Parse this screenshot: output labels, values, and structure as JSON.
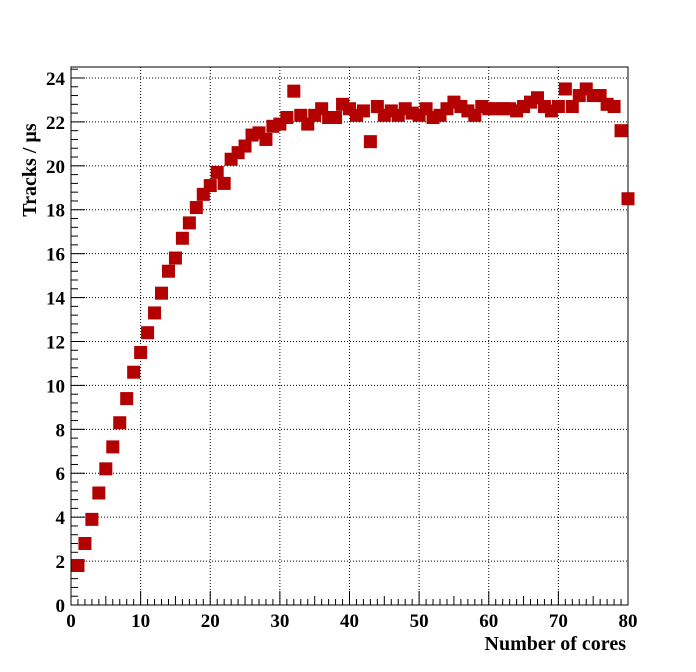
{
  "chart_data": {
    "type": "scatter",
    "title": "",
    "xlabel": "Number of cores",
    "ylabel": "Tracks / µs",
    "xlim": [
      0,
      80
    ],
    "ylim": [
      0,
      24.5
    ],
    "xticks": [
      0,
      10,
      20,
      30,
      40,
      50,
      60,
      70,
      80
    ],
    "yticks": [
      0,
      2,
      4,
      6,
      8,
      10,
      12,
      14,
      16,
      18,
      20,
      22,
      24
    ],
    "grid": true,
    "marker": "square",
    "color": "#b30000",
    "series": [
      {
        "x": [
          1,
          2,
          3,
          4,
          5,
          6,
          7,
          8,
          9,
          10,
          11,
          12,
          13,
          14,
          15,
          16,
          17,
          18,
          19,
          20,
          21,
          22,
          23,
          24,
          25,
          26,
          27,
          28,
          29,
          30,
          31,
          32,
          33,
          34,
          35,
          36,
          37,
          38,
          39,
          40,
          41,
          42,
          43,
          44,
          45,
          46,
          47,
          48,
          49,
          50,
          51,
          52,
          53,
          54,
          55,
          56,
          57,
          58,
          59,
          60,
          61,
          62,
          63,
          64,
          65,
          66,
          67,
          68,
          69,
          70,
          71,
          72,
          73,
          74,
          75,
          76,
          77,
          78,
          79,
          80
        ],
        "y": [
          1.8,
          2.8,
          3.9,
          5.1,
          6.2,
          7.2,
          8.3,
          9.4,
          10.6,
          11.5,
          12.4,
          13.3,
          14.2,
          15.2,
          15.8,
          16.7,
          17.4,
          18.1,
          18.7,
          19.1,
          19.7,
          19.2,
          20.3,
          20.6,
          20.9,
          21.4,
          21.5,
          21.2,
          21.8,
          21.9,
          22.2,
          23.4,
          22.3,
          21.9,
          22.3,
          22.6,
          22.2,
          22.2,
          22.8,
          22.6,
          22.3,
          22.5,
          21.1,
          22.7,
          22.3,
          22.5,
          22.3,
          22.6,
          22.4,
          22.3,
          22.6,
          22.2,
          22.3,
          22.6,
          22.9,
          22.7,
          22.5,
          22.3,
          22.7,
          22.6,
          22.6,
          22.6,
          22.6,
          22.5,
          22.7,
          22.9,
          23.1,
          22.7,
          22.5,
          22.7,
          23.5,
          22.7,
          23.2,
          23.5,
          23.2,
          23.2,
          22.8,
          22.7,
          21.6,
          18.5
        ]
      }
    ]
  }
}
